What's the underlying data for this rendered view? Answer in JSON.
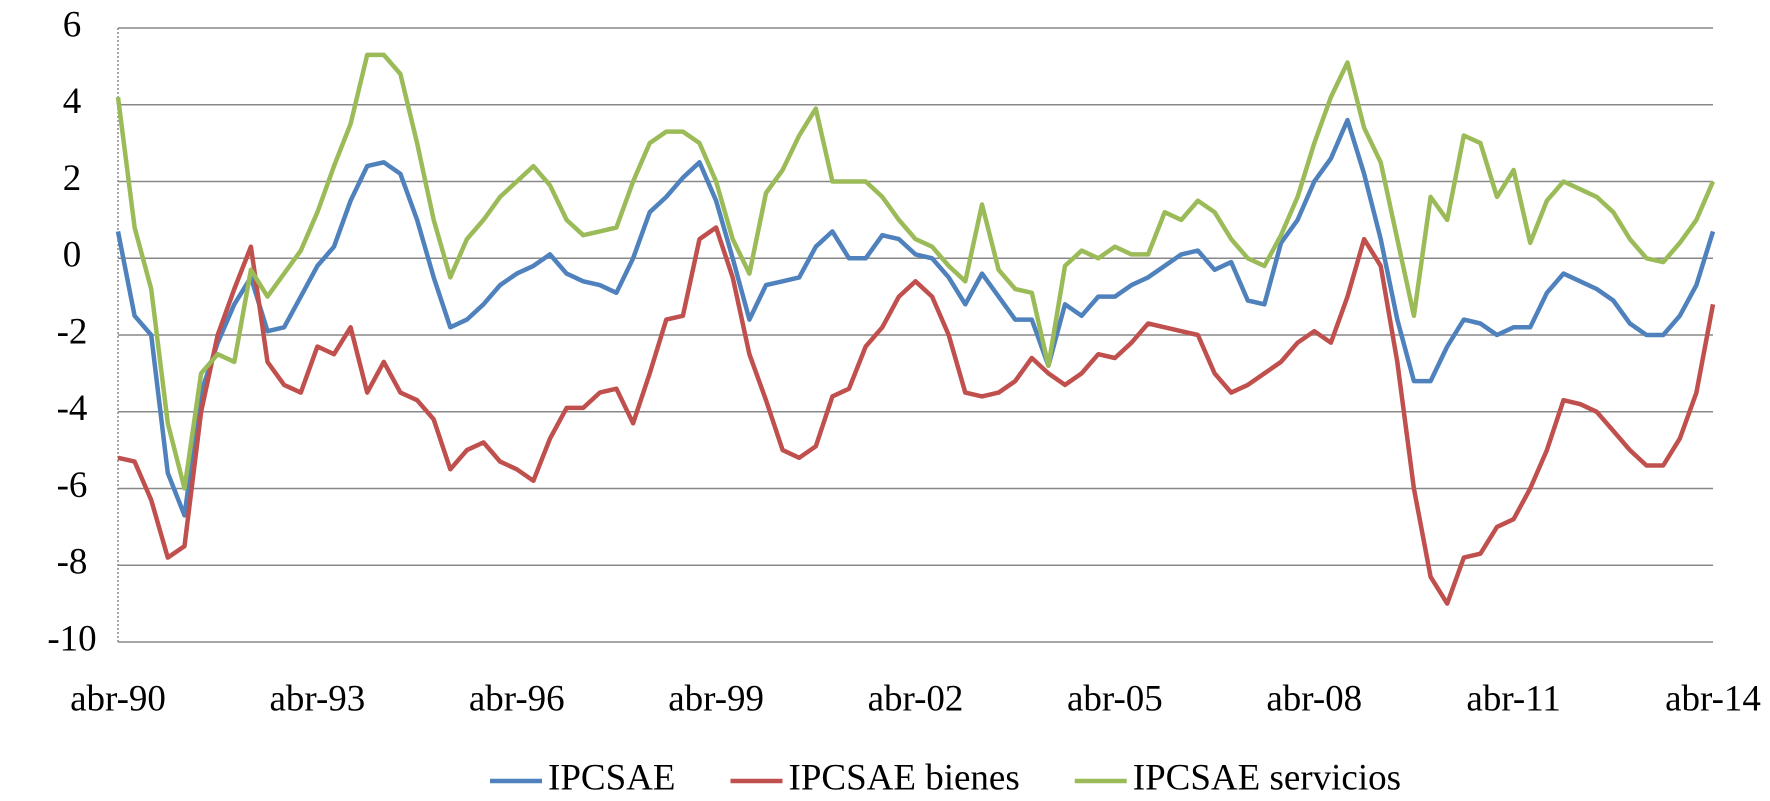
{
  "chart_data": {
    "type": "line",
    "categories": [
      "abr-90",
      null,
      null,
      null,
      null,
      null,
      null,
      null,
      null,
      null,
      null,
      null,
      "abr-93",
      null,
      null,
      null,
      null,
      null,
      null,
      null,
      null,
      null,
      null,
      null,
      "abr-96",
      null,
      null,
      null,
      null,
      null,
      null,
      null,
      null,
      null,
      null,
      null,
      "abr-99",
      null,
      null,
      null,
      null,
      null,
      null,
      null,
      null,
      null,
      null,
      null,
      "abr-02",
      null,
      null,
      null,
      null,
      null,
      null,
      null,
      null,
      null,
      null,
      null,
      "abr-05",
      null,
      null,
      null,
      null,
      null,
      null,
      null,
      null,
      null,
      null,
      null,
      "abr-08",
      null,
      null,
      null,
      null,
      null,
      null,
      null,
      null,
      null,
      null,
      null,
      "abr-11",
      null,
      null,
      null,
      null,
      null,
      null,
      null,
      null,
      null,
      null,
      null,
      "abr-14"
    ],
    "series": [
      {
        "name": "IPCSAE",
        "color": "#4f81bd",
        "values": [
          0.7,
          -1.5,
          -2,
          -5.6,
          -6.7,
          -3.5,
          -2.2,
          -1.2,
          -0.5,
          -1.9,
          -1.8,
          -1.0,
          -0.2,
          0.3,
          1.5,
          2.4,
          2.5,
          2.2,
          1.0,
          -0.5,
          -1.8,
          -1.6,
          -1.2,
          -0.7,
          -0.4,
          -0.2,
          0.1,
          -0.4,
          -0.6,
          -0.7,
          -0.9,
          0.0,
          1.2,
          1.6,
          2.1,
          2.5,
          1.5,
          0.0,
          -1.6,
          -0.7,
          -0.6,
          -0.5,
          0.3,
          0.7,
          0.0,
          0.0,
          0.6,
          0.5,
          0.1,
          0.0,
          -0.5,
          -1.2,
          -0.4,
          -1.0,
          -1.6,
          -1.6,
          -2.8,
          -1.2,
          -1.5,
          -1.0,
          -1.0,
          -0.7,
          -0.5,
          -0.2,
          0.1,
          0.2,
          -0.3,
          -0.1,
          -1.1,
          -1.2,
          0.4,
          1.0,
          2.0,
          2.6,
          3.6,
          2.2,
          0.5,
          -1.6,
          -3.2,
          -3.2,
          -2.3,
          -1.6,
          -1.7,
          -2.0,
          -1.8,
          -1.8,
          -0.9,
          -0.4,
          -0.6,
          -0.8,
          -1.1,
          -1.7,
          -2.0,
          -2.0,
          -1.5,
          -0.7,
          0.7
        ]
      },
      {
        "name": "IPCSAE bienes",
        "color": "#c0504d",
        "values": [
          -5.2,
          -5.3,
          -6.3,
          -7.8,
          -7.5,
          -4.0,
          -2.0,
          -0.8,
          0.3,
          -2.7,
          -3.3,
          -3.5,
          -2.3,
          -2.5,
          -1.8,
          -3.5,
          -2.7,
          -3.5,
          -3.7,
          -4.2,
          -5.5,
          -5.0,
          -4.8,
          -5.3,
          -5.5,
          -5.8,
          -4.7,
          -3.9,
          -3.9,
          -3.5,
          -3.4,
          -4.3,
          -3.0,
          -1.6,
          -1.5,
          0.5,
          0.8,
          -0.5,
          -2.5,
          -3.7,
          -5.0,
          -5.2,
          -4.9,
          -3.6,
          -3.4,
          -2.3,
          -1.8,
          -1.0,
          -0.6,
          -1.0,
          -2.0,
          -3.5,
          -3.6,
          -3.5,
          -3.2,
          -2.6,
          -3.0,
          -3.3,
          -3.0,
          -2.5,
          -2.6,
          -2.2,
          -1.7,
          -1.8,
          -1.9,
          -2.0,
          -3.0,
          -3.5,
          -3.3,
          -3.0,
          -2.7,
          -2.2,
          -1.9,
          -2.2,
          -1.0,
          0.5,
          -0.2,
          -2.7,
          -6.0,
          -8.3,
          -9.0,
          -7.8,
          -7.7,
          -7.0,
          -6.8,
          -6.0,
          -5.0,
          -3.7,
          -3.8,
          -4.0,
          -4.5,
          -5.0,
          -5.4,
          -5.4,
          -4.7,
          -3.5,
          -1.2
        ]
      },
      {
        "name": "IPCSAE servicios",
        "color": "#9bbb59",
        "values": [
          4.2,
          0.8,
          -0.8,
          -4.3,
          -6.0,
          -3.0,
          -2.5,
          -2.7,
          -0.3,
          -1.0,
          -0.4,
          0.2,
          1.2,
          2.4,
          3.5,
          5.3,
          5.3,
          4.8,
          3.0,
          1.0,
          -0.5,
          0.5,
          1.0,
          1.6,
          2.0,
          2.4,
          1.9,
          1.0,
          0.6,
          0.7,
          0.8,
          2.0,
          3.0,
          3.3,
          3.3,
          3.0,
          2.0,
          0.5,
          -0.4,
          1.7,
          2.3,
          3.2,
          3.9,
          2.0,
          2.0,
          2.0,
          1.6,
          1.0,
          0.5,
          0.3,
          -0.2,
          -0.6,
          1.4,
          -0.3,
          -0.8,
          -0.9,
          -2.8,
          -0.2,
          0.2,
          0.0,
          0.3,
          0.1,
          0.1,
          1.2,
          1.0,
          1.5,
          1.2,
          0.5,
          0.0,
          -0.2,
          0.6,
          1.6,
          3.0,
          4.2,
          5.1,
          3.4,
          2.5,
          0.5,
          -1.5,
          1.6,
          1.0,
          3.2,
          3.0,
          1.6,
          2.3,
          0.4,
          1.5,
          2.0,
          1.8,
          1.6,
          1.2,
          0.5,
          0.0,
          -0.1,
          0.4,
          1.0,
          2.0
        ]
      }
    ],
    "ylim": [
      -10,
      6
    ],
    "yticks": [
      -10,
      -8,
      -6,
      -4,
      -2,
      0,
      2,
      4,
      6
    ],
    "grid": true,
    "legend": "bottom"
  }
}
